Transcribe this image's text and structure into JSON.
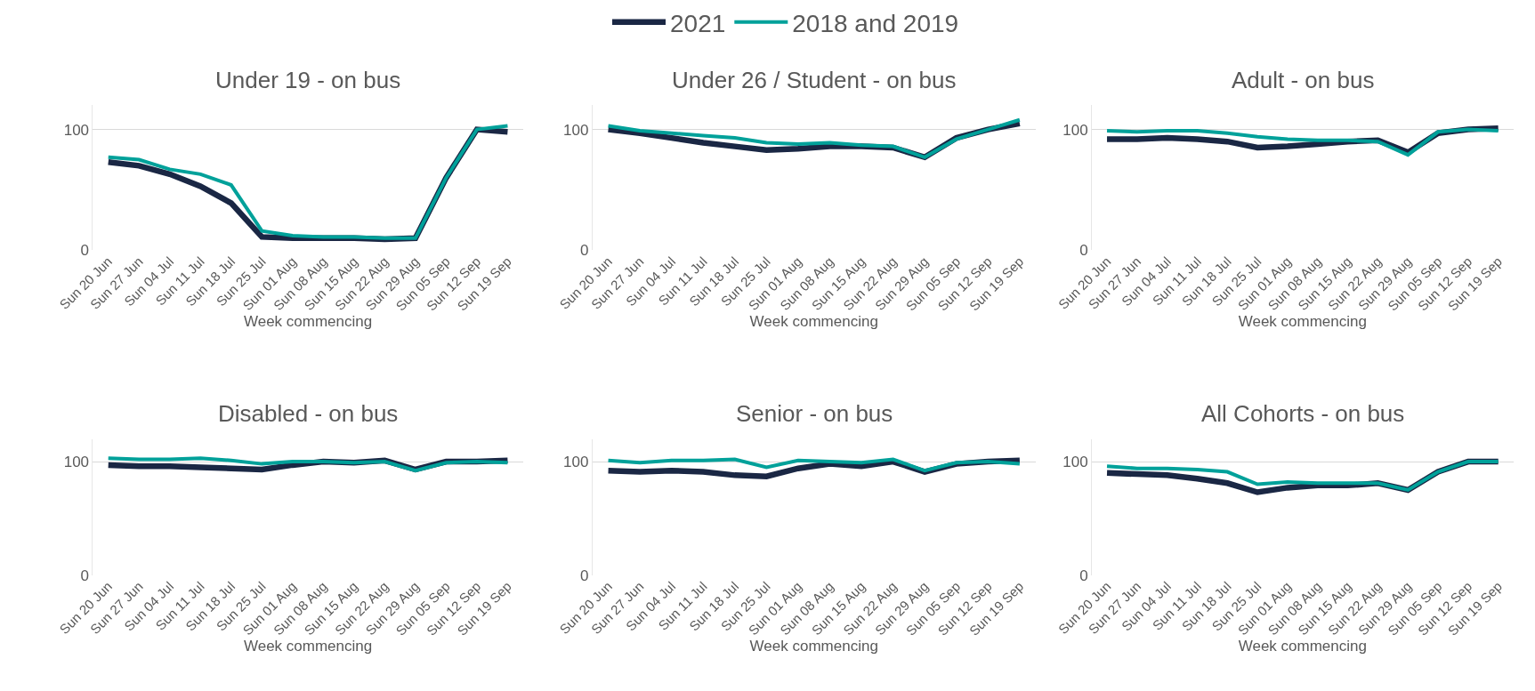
{
  "chart_data": [
    {
      "type": "line",
      "title": "Under 19 - on bus",
      "xlabel": "Week commencing",
      "categories": [
        "Sun 20 Jun",
        "Sun 27 Jun",
        "Sun 04 Jul",
        "Sun 11 Jul",
        "Sun 18 Jul",
        "Sun 25 Jul",
        "Sun 01 Aug",
        "Sun 08 Aug",
        "Sun 15 Aug",
        "Sun 22 Aug",
        "Sun 29 Aug",
        "Sun 05 Sep",
        "Sun 12 Sep",
        "Sun 19 Sep"
      ],
      "ylim": [
        0,
        120
      ],
      "yticks": [
        0,
        100
      ],
      "grid": "y",
      "legend": "top",
      "marker": "none",
      "line_style": "solid",
      "series": [
        {
          "name": "2021",
          "color": "#1a2744",
          "values": [
            73,
            70,
            63,
            53,
            39,
            11,
            10,
            10,
            10,
            9,
            10,
            60,
            100,
            98
          ]
        },
        {
          "name": "2018 and 2019",
          "color": "#00a19a",
          "values": [
            77,
            75,
            67,
            63,
            54,
            16,
            12,
            11,
            11,
            10,
            10,
            60,
            100,
            103
          ]
        }
      ]
    },
    {
      "type": "line",
      "title": "Under 26 / Student - on bus",
      "xlabel": "Week commencing",
      "categories": [
        "Sun 20 Jun",
        "Sun 27 Jun",
        "Sun 04 Jul",
        "Sun 11 Jul",
        "Sun 18 Jul",
        "Sun 25 Jul",
        "Sun 01 Aug",
        "Sun 08 Aug",
        "Sun 15 Aug",
        "Sun 22 Aug",
        "Sun 29 Aug",
        "Sun 05 Sep",
        "Sun 12 Sep",
        "Sun 19 Sep"
      ],
      "ylim": [
        0,
        120
      ],
      "yticks": [
        0,
        100
      ],
      "grid": "y",
      "marker": "none",
      "line_style": "solid",
      "series": [
        {
          "color": "#1a2744",
          "values": [
            100,
            97,
            93,
            89,
            86,
            83,
            84,
            86,
            86,
            85,
            77,
            93,
            100,
            105
          ]
        },
        {
          "color": "#00a19a",
          "values": [
            103,
            99,
            97,
            95,
            93,
            89,
            88,
            89,
            87,
            86,
            77,
            92,
            100,
            108
          ]
        }
      ]
    },
    {
      "type": "line",
      "title": "Adult - on bus",
      "xlabel": "Week commencing",
      "categories": [
        "Sun 20 Jun",
        "Sun 27 Jun",
        "Sun 04 Jul",
        "Sun 11 Jul",
        "Sun 18 Jul",
        "Sun 25 Jul",
        "Sun 01 Aug",
        "Sun 08 Aug",
        "Sun 15 Aug",
        "Sun 22 Aug",
        "Sun 29 Aug",
        "Sun 05 Sep",
        "Sun 12 Sep",
        "Sun 19 Sep"
      ],
      "ylim": [
        0,
        120
      ],
      "yticks": [
        0,
        100
      ],
      "grid": "y",
      "marker": "none",
      "line_style": "solid",
      "series": [
        {
          "color": "#1a2744",
          "values": [
            92,
            92,
            93,
            92,
            90,
            85,
            86,
            88,
            90,
            91,
            81,
            97,
            100,
            101
          ]
        },
        {
          "color": "#00a19a",
          "values": [
            99,
            98,
            99,
            99,
            97,
            94,
            92,
            91,
            91,
            90,
            79,
            98,
            100,
            99
          ]
        }
      ]
    },
    {
      "type": "line",
      "title": "Disabled - on bus",
      "xlabel": "Week commencing",
      "categories": [
        "Sun 20 Jun",
        "Sun 27 Jun",
        "Sun 04 Jul",
        "Sun 11 Jul",
        "Sun 18 Jul",
        "Sun 25 Jul",
        "Sun 01 Aug",
        "Sun 08 Aug",
        "Sun 15 Aug",
        "Sun 22 Aug",
        "Sun 29 Aug",
        "Sun 05 Sep",
        "Sun 12 Sep",
        "Sun 19 Sep"
      ],
      "ylim": [
        0,
        120
      ],
      "yticks": [
        0,
        100
      ],
      "grid": "y",
      "marker": "none",
      "line_style": "solid",
      "series": [
        {
          "color": "#1a2744",
          "values": [
            97,
            96,
            96,
            95,
            94,
            93,
            97,
            100,
            99,
            101,
            93,
            100,
            100,
            101
          ]
        },
        {
          "color": "#00a19a",
          "values": [
            103,
            102,
            102,
            103,
            101,
            98,
            100,
            100,
            99,
            100,
            92,
            99,
            100,
            99
          ]
        }
      ]
    },
    {
      "type": "line",
      "title": "Senior - on bus",
      "xlabel": "Week commencing",
      "categories": [
        "Sun 20 Jun",
        "Sun 27 Jun",
        "Sun 04 Jul",
        "Sun 11 Jul",
        "Sun 18 Jul",
        "Sun 25 Jul",
        "Sun 01 Aug",
        "Sun 08 Aug",
        "Sun 15 Aug",
        "Sun 22 Aug",
        "Sun 29 Aug",
        "Sun 05 Sep",
        "Sun 12 Sep",
        "Sun 19 Sep"
      ],
      "ylim": [
        0,
        120
      ],
      "yticks": [
        0,
        100
      ],
      "grid": "y",
      "marker": "none",
      "line_style": "solid",
      "series": [
        {
          "color": "#1a2744",
          "values": [
            92,
            91,
            92,
            91,
            88,
            87,
            94,
            98,
            96,
            100,
            91,
            98,
            100,
            101
          ]
        },
        {
          "color": "#00a19a",
          "values": [
            101,
            99,
            101,
            101,
            102,
            95,
            101,
            100,
            99,
            102,
            92,
            99,
            100,
            98
          ]
        }
      ]
    },
    {
      "type": "line",
      "title": "All Cohorts - on bus",
      "xlabel": "Week commencing",
      "categories": [
        "Sun 20 Jun",
        "Sun 27 Jun",
        "Sun 04 Jul",
        "Sun 11 Jul",
        "Sun 18 Jul",
        "Sun 25 Jul",
        "Sun 01 Aug",
        "Sun 08 Aug",
        "Sun 15 Aug",
        "Sun 22 Aug",
        "Sun 29 Aug",
        "Sun 05 Sep",
        "Sun 12 Sep",
        "Sun 19 Sep"
      ],
      "ylim": [
        0,
        120
      ],
      "yticks": [
        0,
        100
      ],
      "grid": "y",
      "marker": "none",
      "line_style": "solid",
      "series": [
        {
          "color": "#1a2744",
          "values": [
            90,
            89,
            88,
            85,
            81,
            73,
            77,
            79,
            79,
            81,
            75,
            91,
            100,
            100
          ]
        },
        {
          "color": "#00a19a",
          "values": [
            96,
            94,
            94,
            93,
            91,
            80,
            82,
            81,
            81,
            81,
            75,
            91,
            100,
            100
          ]
        }
      ]
    }
  ]
}
